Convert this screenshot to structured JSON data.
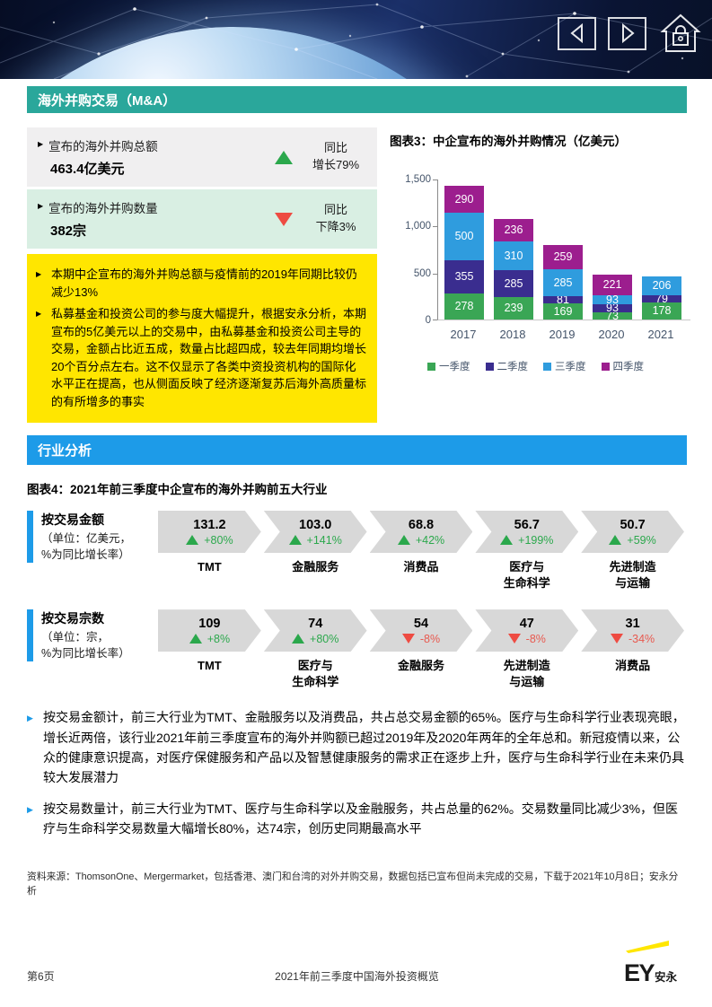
{
  "banner": {
    "icons": [
      "prev-arrow",
      "next-arrow",
      "home-lock"
    ]
  },
  "section1": {
    "title": "海外并购交易（M&A）",
    "stats": [
      {
        "label": "宣布的海外并购总额",
        "value_line": "463.4亿美元",
        "direction": "up",
        "yoy": "同比\n增长79%"
      },
      {
        "label": "宣布的海外并购数量",
        "value_line": "382宗",
        "direction": "down",
        "yoy": "同比\n下降3%"
      }
    ],
    "highlights": [
      "本期中企宣布的海外并购总额与疫情前的2019年同期比较仍减少13%",
      "私募基金和投资公司的参与度大幅提升，根据安永分析，本期宣布的5亿美元以上的交易中，由私募基金和投资公司主导的交易，金额占比近五成，数量占比超四成，较去年同期均增长20个百分点左右。这不仅显示了各类中资投资机构的国际化水平正在提高，也从侧面反映了经济逐渐复苏后海外高质量标的有所增多的事实"
    ]
  },
  "chart_data": {
    "type": "bar",
    "stacked": true,
    "title": "图表3：中企宣布的海外并购情况（亿美元）",
    "categories": [
      "2017",
      "2018",
      "2019",
      "2020",
      "2021"
    ],
    "series": [
      {
        "name": "一季度",
        "color": "#3AA655",
        "values": [
          278,
          239,
          169,
          73,
          178
        ]
      },
      {
        "name": "二季度",
        "color": "#3A2D8F",
        "values": [
          355,
          285,
          81,
          93,
          79
        ]
      },
      {
        "name": "三季度",
        "color": "#2F9CDE",
        "values": [
          500,
          310,
          285,
          93,
          206
        ]
      },
      {
        "name": "四季度",
        "color": "#9C1E8E",
        "values": [
          290,
          236,
          259,
          221,
          null
        ]
      }
    ],
    "ylabel": "",
    "xlabel": "",
    "ylim": [
      0,
      1500
    ],
    "yticks": [
      0,
      500,
      1000,
      1500
    ],
    "ytick_labels": [
      "0",
      "500",
      "1,000",
      "1,500"
    ],
    "grid": false,
    "legend_position": "bottom"
  },
  "section2": {
    "title": "行业分析",
    "subtitle": "图表4：2021年前三季度中企宣布的海外并购前五大行业",
    "rows": [
      {
        "label": "按交易金额",
        "note": "（单位：亿美元，\n%为同比增长率）",
        "items": [
          {
            "value": "131.2",
            "change": "+80%",
            "direction": "up",
            "industry": "TMT"
          },
          {
            "value": "103.0",
            "change": "+141%",
            "direction": "up",
            "industry": "金融服务"
          },
          {
            "value": "68.8",
            "change": "+42%",
            "direction": "up",
            "industry": "消费品"
          },
          {
            "value": "56.7",
            "change": "+199%",
            "direction": "up",
            "industry": "医疗与\n生命科学"
          },
          {
            "value": "50.7",
            "change": "+59%",
            "direction": "up",
            "industry": "先进制造\n与运输"
          }
        ]
      },
      {
        "label": "按交易宗数",
        "note": "（单位：宗，\n%为同比增长率）",
        "items": [
          {
            "value": "109",
            "change": "+8%",
            "direction": "up",
            "industry": "TMT"
          },
          {
            "value": "74",
            "change": "+80%",
            "direction": "up",
            "industry": "医疗与\n生命科学"
          },
          {
            "value": "54",
            "change": "-8%",
            "direction": "down",
            "industry": "金融服务"
          },
          {
            "value": "47",
            "change": "-8%",
            "direction": "down",
            "industry": "先进制造\n与运输"
          },
          {
            "value": "31",
            "change": "-34%",
            "direction": "down",
            "industry": "消费品"
          }
        ]
      }
    ],
    "bullets": [
      "按交易金额计，前三大行业为TMT、金融服务以及消费品，共占总交易金额的65%。医疗与生命科学行业表现亮眼，增长近两倍，该行业2021年前三季度宣布的海外并购额已超过2019年及2020年两年的全年总和。新冠疫情以来，公众的健康意识提高，对医疗保健服务和产品以及智慧健康服务的需求正在逐步上升，医疗与生命科学行业在未来仍具较大发展潜力",
      "按交易数量计，前三大行业为TMT、医疗与生命科学以及金融服务，共占总量的62%。交易数量同比减少3%，但医疗与生命科学交易数量大幅增长80%，达74宗，创历史同期最高水平"
    ]
  },
  "footer": {
    "source": "资料来源：ThomsonOne、Mergermarket，包括香港、澳门和台湾的对外并购交易，数据包括已宣布但尚未完成的交易，下载于2021年10月8日；安永分析",
    "page": "第6页",
    "doc_title": "2021年前三季度中国海外投资概览",
    "logo_text": "EY",
    "logo_suffix": "安永"
  },
  "colors": {
    "teal_header": "#2AA79B",
    "blue_header": "#1D9BE8",
    "ey_yellow": "#FFE600",
    "up_green": "#2BA84C",
    "down_red": "#EE4B42",
    "chevron_gray": "#D8D8D8",
    "stat_gray": "#F0EFF0",
    "stat_mint": "#D9EFE3"
  }
}
